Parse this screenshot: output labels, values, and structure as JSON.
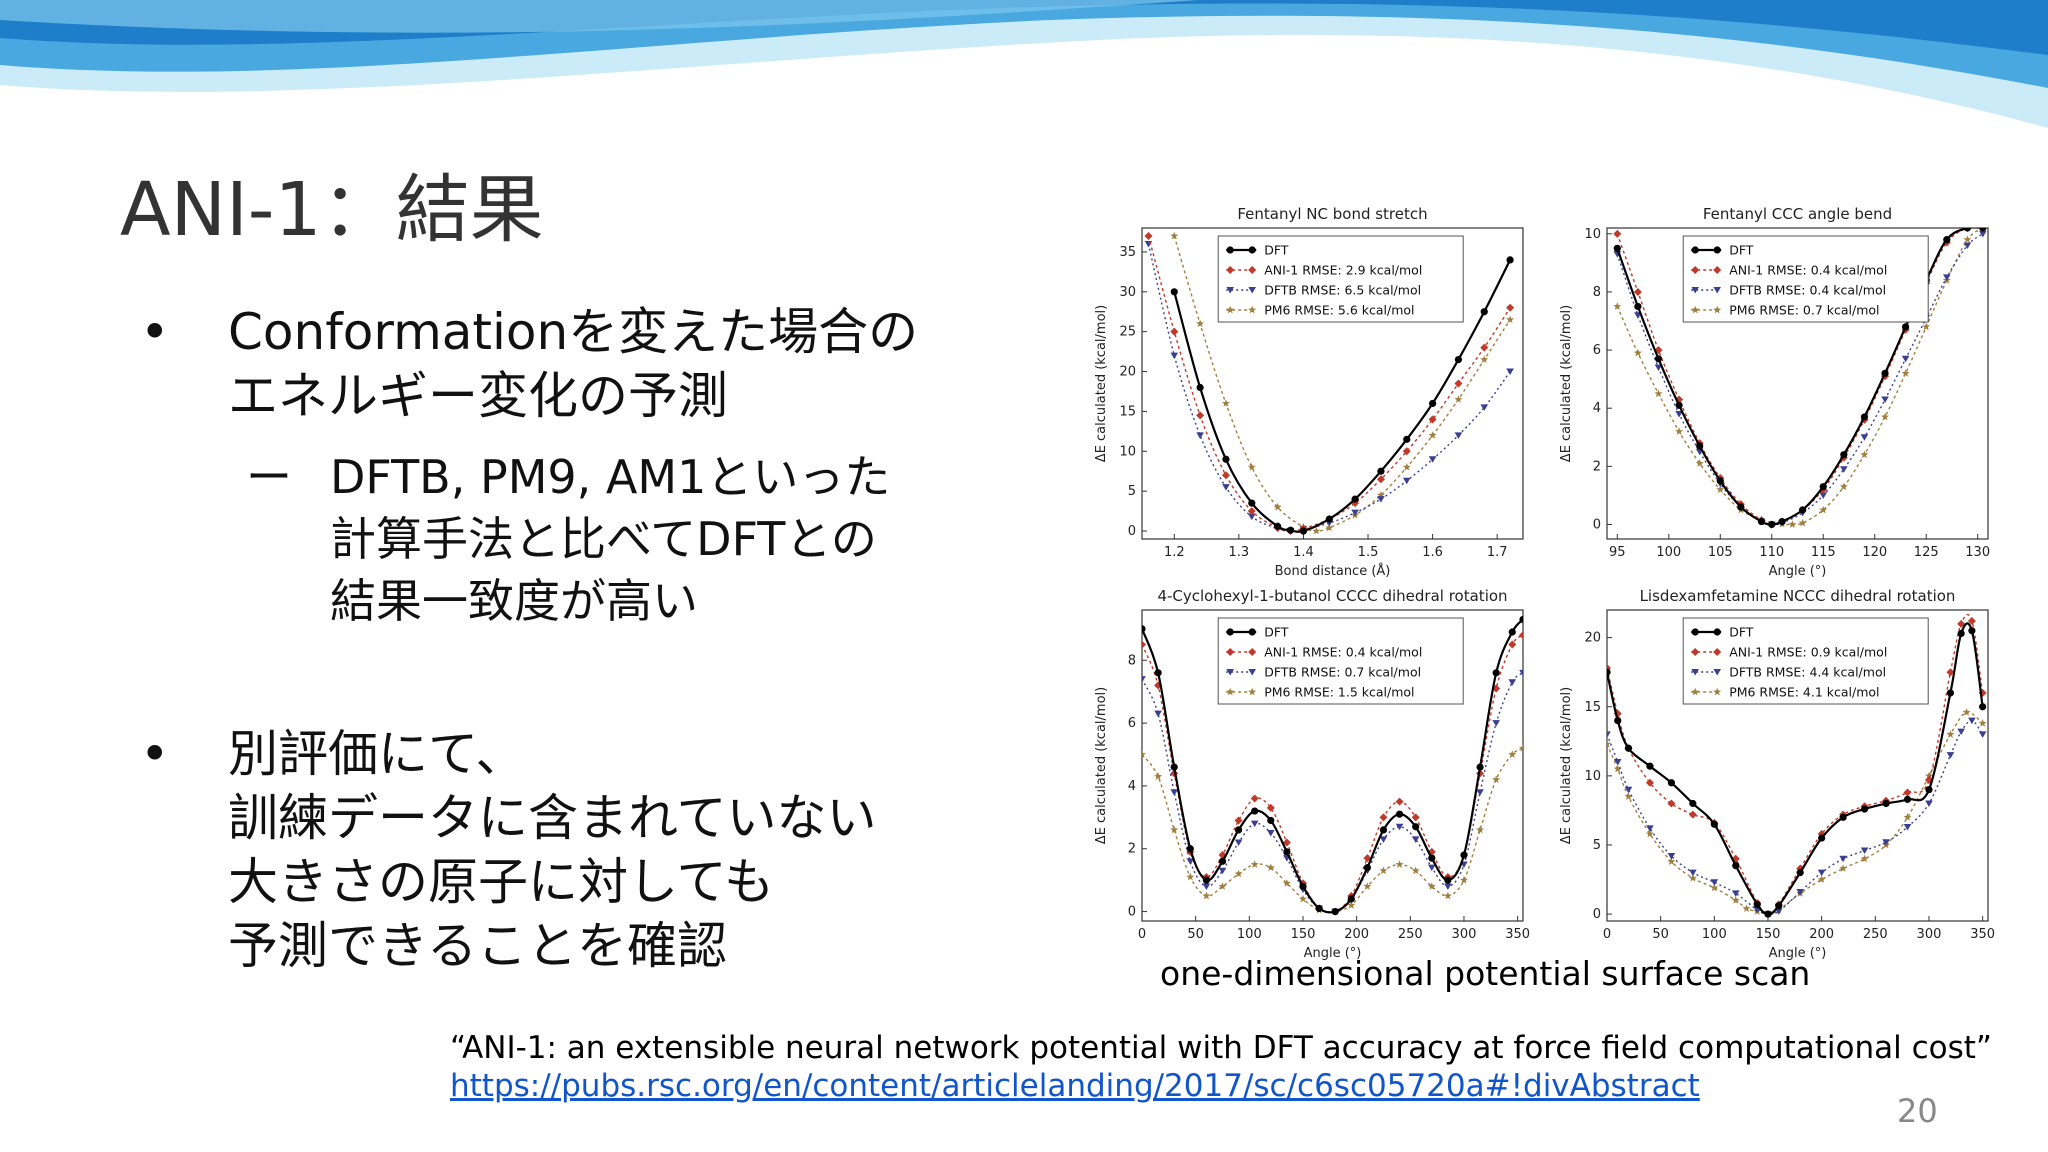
{
  "slide": {
    "title": "ANI-1：結果",
    "bullets": [
      {
        "lines": [
          "Conformationを変えた場合の",
          "エネルギー変化の予測"
        ]
      },
      {
        "lines": [
          "別評価にて、",
          "訓練データに含まれていない",
          "大きさの原子に対しても",
          "予測できることを確認"
        ]
      }
    ],
    "subbullet": {
      "dash": "ー",
      "lines": [
        "DFTB, PM9, AM1といった",
        "計算手法と比べてDFTとの",
        "結果一致度が高い"
      ]
    },
    "bullet_symbol": "•",
    "caption": "one-dimensional potential surface scan",
    "citation": "“ANI-1: an extensible neural network potential with DFT accuracy at force field computational cost”",
    "link": "https://pubs.rsc.org/en/content/articlelanding/2017/sc/c6sc05720a#!divAbstract",
    "page_number": "20"
  },
  "colors": {
    "dft": "#000000",
    "ani1": "#c0392b",
    "dftb": "#3a3f8f",
    "pm6": "#a08040",
    "wave_dark": "#1f7ec9",
    "wave_light": "#8fd0f0"
  },
  "chart_data": [
    {
      "type": "line",
      "title": "Fentanyl NC bond stretch",
      "xlabel": "Bond distance (Å)",
      "ylabel": "ΔE calculated (kcal/mol)",
      "xlim": [
        1.15,
        1.74
      ],
      "ylim": [
        -1,
        38
      ],
      "xticks": [
        1.2,
        1.3,
        1.4,
        1.5,
        1.6,
        1.7
      ],
      "yticks": [
        0,
        5,
        10,
        15,
        20,
        25,
        30,
        35
      ],
      "legend": "top-center",
      "legend_labels": [
        "DFT",
        "ANI-1 RMSE: 2.9 kcal/mol",
        "DFTB  RMSE: 6.5 kcal/mol",
        "PM6   RMSE: 5.6 kcal/mol"
      ],
      "series": [
        {
          "key": "dft",
          "x": [
            1.2,
            1.24,
            1.28,
            1.32,
            1.36,
            1.38,
            1.4,
            1.44,
            1.48,
            1.52,
            1.56,
            1.6,
            1.64,
            1.68,
            1.72
          ],
          "y": [
            30,
            18,
            9,
            3.5,
            0.6,
            0.1,
            0,
            1.5,
            4,
            7.5,
            11.5,
            16,
            21.5,
            27.5,
            34
          ]
        },
        {
          "key": "ani1",
          "x": [
            1.16,
            1.2,
            1.24,
            1.28,
            1.32,
            1.36,
            1.38,
            1.4,
            1.44,
            1.48,
            1.52,
            1.56,
            1.6,
            1.64,
            1.68,
            1.72
          ],
          "y": [
            37,
            25,
            14.5,
            7,
            2.5,
            0.4,
            0,
            0.3,
            1.5,
            3.5,
            6.5,
            10,
            14,
            18.5,
            23,
            28
          ]
        },
        {
          "key": "dftb",
          "x": [
            1.16,
            1.2,
            1.24,
            1.28,
            1.32,
            1.36,
            1.38,
            1.4,
            1.44,
            1.48,
            1.52,
            1.56,
            1.6,
            1.64,
            1.68,
            1.72
          ],
          "y": [
            36,
            22,
            12,
            5.5,
            1.8,
            0.3,
            0,
            0.2,
            1,
            2.3,
            4,
            6.3,
            9,
            12,
            15.5,
            20
          ]
        },
        {
          "key": "pm6",
          "x": [
            1.2,
            1.24,
            1.28,
            1.32,
            1.36,
            1.4,
            1.42,
            1.44,
            1.48,
            1.52,
            1.56,
            1.6,
            1.64,
            1.68,
            1.72
          ],
          "y": [
            37,
            26,
            16,
            8,
            3,
            0.5,
            0,
            0.4,
            2,
            4.5,
            8,
            12,
            16.5,
            21.5,
            26.5
          ]
        }
      ]
    },
    {
      "type": "line",
      "title": "Fentanyl CCC angle bend",
      "xlabel": "Angle (°)",
      "ylabel": "ΔE calculated (kcal/mol)",
      "xlim": [
        94,
        131
      ],
      "ylim": [
        -0.5,
        10.2
      ],
      "xticks": [
        95,
        100,
        105,
        110,
        115,
        120,
        125,
        130
      ],
      "yticks": [
        0,
        2,
        4,
        6,
        8,
        10
      ],
      "legend": "top-center",
      "legend_labels": [
        "DFT",
        "ANI-1 RMSE: 0.4 kcal/mol",
        "DFTB  RMSE: 0.4 kcal/mol",
        "PM6   RMSE: 0.7 kcal/mol"
      ],
      "series": [
        {
          "key": "dft",
          "x": [
            95,
            97,
            99,
            101,
            103,
            105,
            107,
            109,
            110,
            111,
            113,
            115,
            117,
            119,
            121,
            123,
            125,
            127,
            129,
            130.5
          ],
          "y": [
            9.5,
            7.5,
            5.7,
            4.1,
            2.7,
            1.5,
            0.6,
            0.1,
            0,
            0.1,
            0.5,
            1.3,
            2.4,
            3.7,
            5.2,
            6.8,
            8.4,
            9.8,
            10.2,
            10.2
          ]
        },
        {
          "key": "ani1",
          "x": [
            95,
            97,
            99,
            101,
            103,
            105,
            107,
            109,
            110,
            111,
            113,
            115,
            117,
            119,
            121,
            123,
            125,
            127,
            129,
            130.5
          ],
          "y": [
            10,
            8,
            6,
            4.3,
            2.8,
            1.6,
            0.7,
            0.15,
            0,
            0.1,
            0.5,
            1.2,
            2.3,
            3.6,
            5.1,
            6.7,
            8.3,
            9.7,
            10.2,
            10.2
          ]
        },
        {
          "key": "dftb",
          "x": [
            95,
            97,
            99,
            101,
            103,
            105,
            107,
            109,
            110,
            111,
            113,
            115,
            117,
            119,
            121,
            123,
            125,
            127,
            129,
            130.5
          ],
          "y": [
            9.3,
            7.2,
            5.4,
            3.8,
            2.5,
            1.4,
            0.6,
            0.1,
            0,
            0.05,
            0.4,
            1,
            1.9,
            3,
            4.3,
            5.7,
            7.1,
            8.5,
            9.6,
            10
          ]
        },
        {
          "key": "pm6",
          "x": [
            95,
            97,
            99,
            101,
            103,
            105,
            107,
            109,
            111,
            112,
            113,
            115,
            117,
            119,
            121,
            123,
            125,
            127,
            129,
            130.5
          ],
          "y": [
            7.5,
            5.9,
            4.5,
            3.2,
            2.1,
            1.2,
            0.5,
            0.15,
            0.02,
            0,
            0.05,
            0.5,
            1.3,
            2.4,
            3.7,
            5.2,
            6.8,
            8.4,
            9.8,
            10.2
          ]
        }
      ]
    },
    {
      "type": "line",
      "title": "4-Cyclohexyl-1-butanol CCCC dihedral rotation",
      "xlabel": "Angle (°)",
      "ylabel": "ΔE calculated (kcal/mol)",
      "xlim": [
        0,
        355
      ],
      "ylim": [
        -0.3,
        9.6
      ],
      "xticks": [
        0,
        50,
        100,
        150,
        200,
        250,
        300,
        350
      ],
      "yticks": [
        0,
        2,
        4,
        6,
        8
      ],
      "legend": "top-center",
      "legend_labels": [
        "DFT",
        "ANI-1 RMSE: 0.4 kcal/mol",
        "DFTB  RMSE: 0.7 kcal/mol",
        "PM6   RMSE: 1.5 kcal/mol"
      ],
      "series": [
        {
          "key": "dft",
          "x": [
            0,
            15,
            30,
            45,
            60,
            75,
            90,
            105,
            120,
            135,
            150,
            165,
            180,
            195,
            210,
            225,
            240,
            255,
            270,
            285,
            300,
            315,
            330,
            345,
            355
          ],
          "y": [
            9,
            7.6,
            4.6,
            2,
            1,
            1.6,
            2.6,
            3.2,
            2.9,
            1.9,
            0.8,
            0.1,
            0,
            0.4,
            1.4,
            2.6,
            3.1,
            2.7,
            1.7,
            1,
            1.8,
            4.6,
            7.6,
            8.9,
            9.3
          ]
        },
        {
          "key": "ani1",
          "x": [
            0,
            15,
            30,
            45,
            60,
            75,
            90,
            105,
            120,
            135,
            150,
            165,
            180,
            195,
            210,
            225,
            240,
            255,
            270,
            285,
            300,
            315,
            330,
            345,
            355
          ],
          "y": [
            8.5,
            7.2,
            4.4,
            1.9,
            1.1,
            1.8,
            2.9,
            3.6,
            3.3,
            2.2,
            0.9,
            0.1,
            0,
            0.5,
            1.7,
            3,
            3.5,
            3,
            1.9,
            1.1,
            1.8,
            4.4,
            7.1,
            8.5,
            8.8
          ]
        },
        {
          "key": "dftb",
          "x": [
            0,
            15,
            30,
            45,
            60,
            75,
            90,
            105,
            120,
            135,
            150,
            165,
            180,
            195,
            210,
            225,
            240,
            255,
            270,
            285,
            300,
            315,
            330,
            345,
            355
          ],
          "y": [
            7.4,
            6.3,
            3.8,
            1.6,
            0.8,
            1.3,
            2.2,
            2.8,
            2.5,
            1.7,
            0.7,
            0.1,
            0,
            0.4,
            1.3,
            2.3,
            2.7,
            2.3,
            1.4,
            0.8,
            1.5,
            3.8,
            6,
            7.3,
            7.6
          ]
        },
        {
          "key": "pm6",
          "x": [
            0,
            15,
            30,
            45,
            60,
            75,
            90,
            105,
            120,
            135,
            150,
            165,
            180,
            195,
            210,
            225,
            240,
            255,
            270,
            285,
            300,
            315,
            330,
            345,
            355
          ],
          "y": [
            5,
            4.3,
            2.6,
            1.1,
            0.5,
            0.8,
            1.2,
            1.5,
            1.4,
            0.9,
            0.4,
            0.05,
            0,
            0.2,
            0.8,
            1.3,
            1.5,
            1.3,
            0.8,
            0.5,
            1,
            2.6,
            4.2,
            5,
            5.2
          ]
        }
      ]
    },
    {
      "type": "line",
      "title": "Lisdexamfetamine NCCC dihedral rotation",
      "xlabel": "Angle (°)",
      "ylabel": "ΔE calculated (kcal/mol)",
      "xlim": [
        0,
        355
      ],
      "ylim": [
        -0.5,
        22
      ],
      "xticks": [
        0,
        50,
        100,
        150,
        200,
        250,
        300,
        350
      ],
      "yticks": [
        0,
        5,
        10,
        15,
        20
      ],
      "legend": "top-center",
      "legend_labels": [
        "DFT",
        "ANI-1 RMSE: 0.9 kcal/mol",
        "DFTB  RMSE: 4.4 kcal/mol",
        "PM6   RMSE: 4.1 kcal/mol"
      ],
      "series": [
        {
          "key": "dft",
          "x": [
            0,
            10,
            20,
            40,
            60,
            80,
            100,
            120,
            140,
            150,
            160,
            180,
            200,
            220,
            240,
            260,
            280,
            300,
            320,
            330,
            340,
            350
          ],
          "y": [
            17.5,
            14,
            12,
            10.7,
            9.5,
            8,
            6.5,
            3.5,
            0.7,
            0,
            0.6,
            3,
            5.5,
            7,
            7.6,
            8,
            8.3,
            9,
            16,
            20.3,
            20.5,
            15
          ]
        },
        {
          "key": "ani1",
          "x": [
            0,
            10,
            20,
            40,
            60,
            80,
            100,
            120,
            140,
            150,
            160,
            180,
            200,
            220,
            240,
            260,
            280,
            300,
            320,
            330,
            340,
            350
          ],
          "y": [
            17.8,
            14.5,
            12,
            9.5,
            8,
            7.2,
            6.6,
            4,
            0.8,
            0,
            0.7,
            3.3,
            5.8,
            7.2,
            7.8,
            8.2,
            8.8,
            9.7,
            17.5,
            21,
            21.2,
            16
          ]
        },
        {
          "key": "dftb",
          "x": [
            0,
            10,
            20,
            40,
            60,
            80,
            100,
            120,
            140,
            150,
            160,
            180,
            200,
            220,
            240,
            260,
            280,
            300,
            320,
            330,
            340,
            350
          ],
          "y": [
            13,
            11,
            9,
            6.2,
            4.2,
            3,
            2.3,
            1.5,
            0.3,
            0,
            0.2,
            1.6,
            3,
            4,
            4.6,
            5.2,
            6.3,
            8,
            11.5,
            13.2,
            14,
            13
          ]
        },
        {
          "key": "pm6",
          "x": [
            0,
            10,
            20,
            40,
            60,
            80,
            100,
            120,
            130,
            140,
            150,
            160,
            180,
            200,
            220,
            240,
            260,
            280,
            300,
            320,
            335,
            350
          ],
          "y": [
            12.3,
            10.5,
            8.5,
            5.8,
            3.8,
            2.6,
            1.9,
            1,
            0.4,
            0.2,
            0,
            0.3,
            1.5,
            2.5,
            3.3,
            4,
            5,
            7,
            10,
            13,
            14.6,
            13.8
          ]
        }
      ]
    }
  ]
}
